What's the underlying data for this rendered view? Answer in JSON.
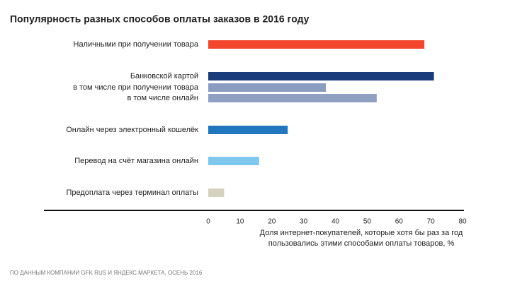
{
  "chart_data": {
    "type": "bar",
    "orientation": "horizontal",
    "title": "Популярность разных способов оплаты заказов в 2016 году",
    "categories": [
      "Наличными при получении товара",
      "Банковской картой",
      "в том числе при получении товара",
      "в том числе онлайн",
      "Онлайн через электронный кошелёк",
      "Перевод на счёт магазина онлайн",
      "Предоплата через терминал оплаты"
    ],
    "values": [
      68,
      71,
      37,
      53,
      25,
      16,
      5
    ],
    "colors": [
      "#f2462d",
      "#1b3c7a",
      "#8a9cc0",
      "#8fa0c2",
      "#2176c0",
      "#7ec8ef",
      "#d5d2c2"
    ],
    "xlim": [
      0,
      80
    ],
    "xticks": [
      0,
      10,
      20,
      30,
      40,
      50,
      60,
      70,
      80
    ],
    "xlabel": [
      "Доля интернет-покупателей, которые хотя бы раз за год",
      "пользовались этими способами оплаты товаров, %"
    ],
    "source": "ПО ДАННЫМ КОМПАНИИ GFK RUS И ЯНДЕКС.МАРКЕТА, ОСЕНЬ 2016",
    "grid": false
  }
}
